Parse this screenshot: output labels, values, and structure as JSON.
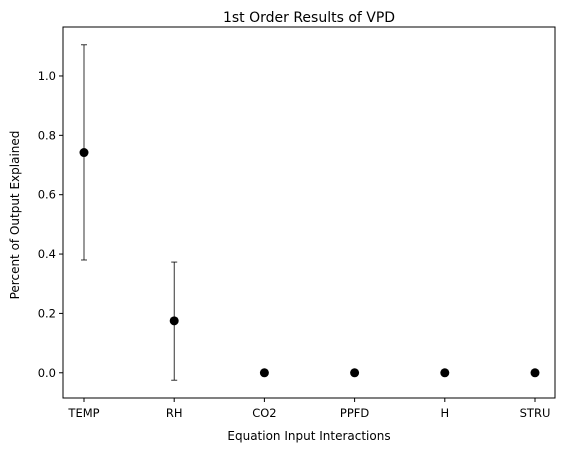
{
  "chart_data": {
    "type": "scatter",
    "title": "1st Order Results of VPD",
    "xlabel": "Equation Input Interactions",
    "ylabel": "Percent of Output Explained",
    "categories": [
      "TEMP",
      "RH",
      "CO2",
      "PPFD",
      "H",
      "STRU"
    ],
    "values": [
      0.742,
      0.175,
      0.0,
      0.0,
      0.0,
      0.0
    ],
    "error_low": [
      0.38,
      -0.025,
      0.0,
      0.0,
      0.0,
      0.0
    ],
    "error_high": [
      1.105,
      0.373,
      0.0,
      0.0,
      0.0,
      0.0
    ],
    "ylim": [
      -0.085,
      1.165
    ],
    "yticks": [
      0.0,
      0.2,
      0.4,
      0.6,
      0.8,
      1.0
    ],
    "ytick_labels": [
      "0.0",
      "0.2",
      "0.4",
      "0.6",
      "0.8",
      "1.0"
    ],
    "grid": false,
    "marker_color": "#000000",
    "errorbar_color": "#000000"
  }
}
